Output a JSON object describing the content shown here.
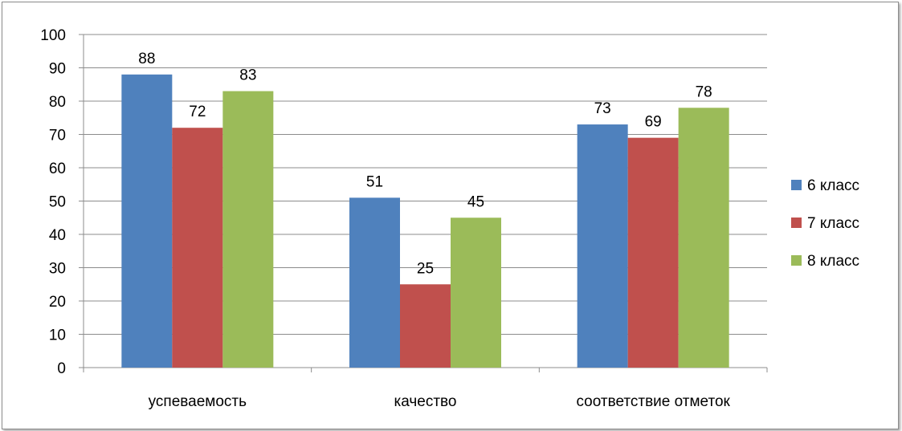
{
  "chart_data": {
    "type": "bar",
    "categories": [
      "успеваемость",
      "качество",
      "соответствие отметок"
    ],
    "series": [
      {
        "name": "6 класс",
        "color": "#4F81BD",
        "values": [
          88,
          51,
          73
        ]
      },
      {
        "name": "7 класс",
        "color": "#C0504D",
        "values": [
          72,
          25,
          69
        ]
      },
      {
        "name": "8 класс",
        "color": "#9BBB59",
        "values": [
          83,
          45,
          78
        ]
      }
    ],
    "ylim": [
      0,
      100
    ],
    "yticks": [
      0,
      10,
      20,
      30,
      40,
      50,
      60,
      70,
      80,
      90,
      100
    ],
    "grid": true,
    "legend_position": "right",
    "data_labels": true
  }
}
